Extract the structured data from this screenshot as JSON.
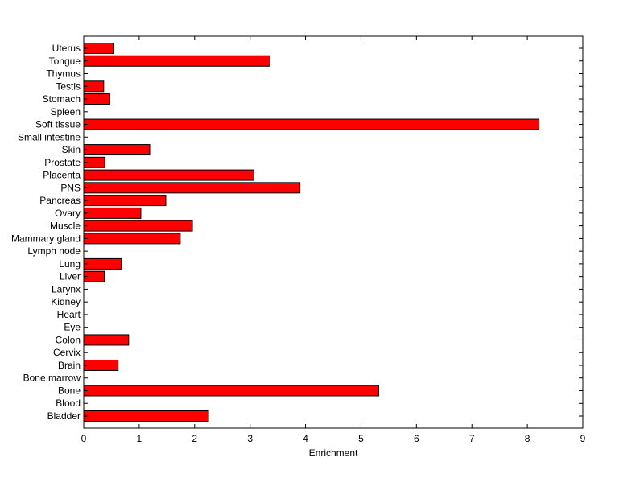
{
  "chart_data": {
    "type": "bar",
    "orientation": "horizontal",
    "title": "",
    "xlabel": "Enrichment",
    "ylabel": "",
    "xlim": [
      0,
      9
    ],
    "xticks": [
      "0",
      "1",
      "2",
      "3",
      "4",
      "5",
      "6",
      "7",
      "8",
      "9"
    ],
    "grid": false,
    "bar_color": "#ff0000",
    "bar_edge_color": "#000000",
    "categories": [
      "Bladder",
      "Blood",
      "Bone",
      "Bone marrow",
      "Brain",
      "Cervix",
      "Colon",
      "Eye",
      "Heart",
      "Kidney",
      "Larynx",
      "Liver",
      "Lung",
      "Lymph node",
      "Mammary gland",
      "Muscle",
      "Ovary",
      "Pancreas",
      "PNS",
      "Placenta",
      "Prostate",
      "Skin",
      "Small intestine",
      "Soft tissue",
      "Spleen",
      "Stomach",
      "Testis",
      "Thymus",
      "Tongue",
      "Uterus"
    ],
    "values": [
      2.25,
      0,
      5.32,
      0,
      0.62,
      0,
      0.81,
      0,
      0,
      0,
      0,
      0.37,
      0.68,
      0,
      1.74,
      1.96,
      1.03,
      1.48,
      3.9,
      3.07,
      0.38,
      1.19,
      0,
      8.21,
      0,
      0.47,
      0.36,
      0,
      3.36,
      0.53
    ]
  }
}
